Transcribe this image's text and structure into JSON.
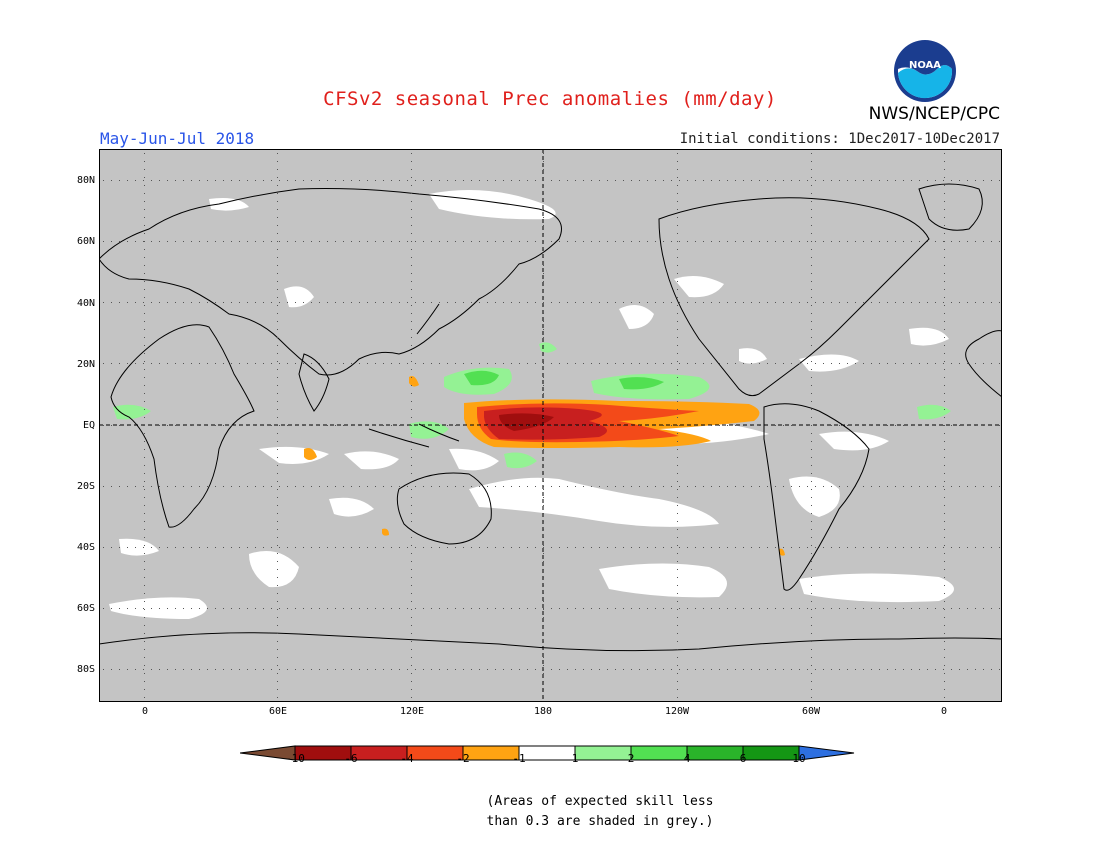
{
  "title": "CFSv2 seasonal Prec anomalies (mm/day)",
  "period": "May-Jun-Jul 2018",
  "initial_conditions": "Initial conditions: 1Dec2017-10Dec2017",
  "agency": "NWS/NCEP/CPC",
  "logo_text": "NOAA",
  "lat_labels": [
    "80N",
    "60N",
    "40N",
    "20N",
    "EQ",
    "20S",
    "40S",
    "60S",
    "80S"
  ],
  "lon_labels": [
    "0",
    "60E",
    "120E",
    "180",
    "120W",
    "60W",
    "0"
  ],
  "colorbar": {
    "labels": [
      "-10",
      "-6",
      "-4",
      "-2",
      "-1",
      "1",
      "2",
      "4",
      "6",
      "10"
    ],
    "colors": [
      "#7a4a32",
      "#a00e0e",
      "#c81f1f",
      "#f34a19",
      "#ffa312",
      "#ffffff",
      "#94f294",
      "#52e052",
      "#2ab42a",
      "#149614",
      "#2d6fe0"
    ]
  },
  "note_lines": [
    "(Areas of expected skill less",
    "than 0.3 are shaded in grey.)"
  ],
  "map_colors": {
    "no_skill": "#c4c4c4",
    "near_zero": "#ffffff",
    "coast": "#000000"
  }
}
